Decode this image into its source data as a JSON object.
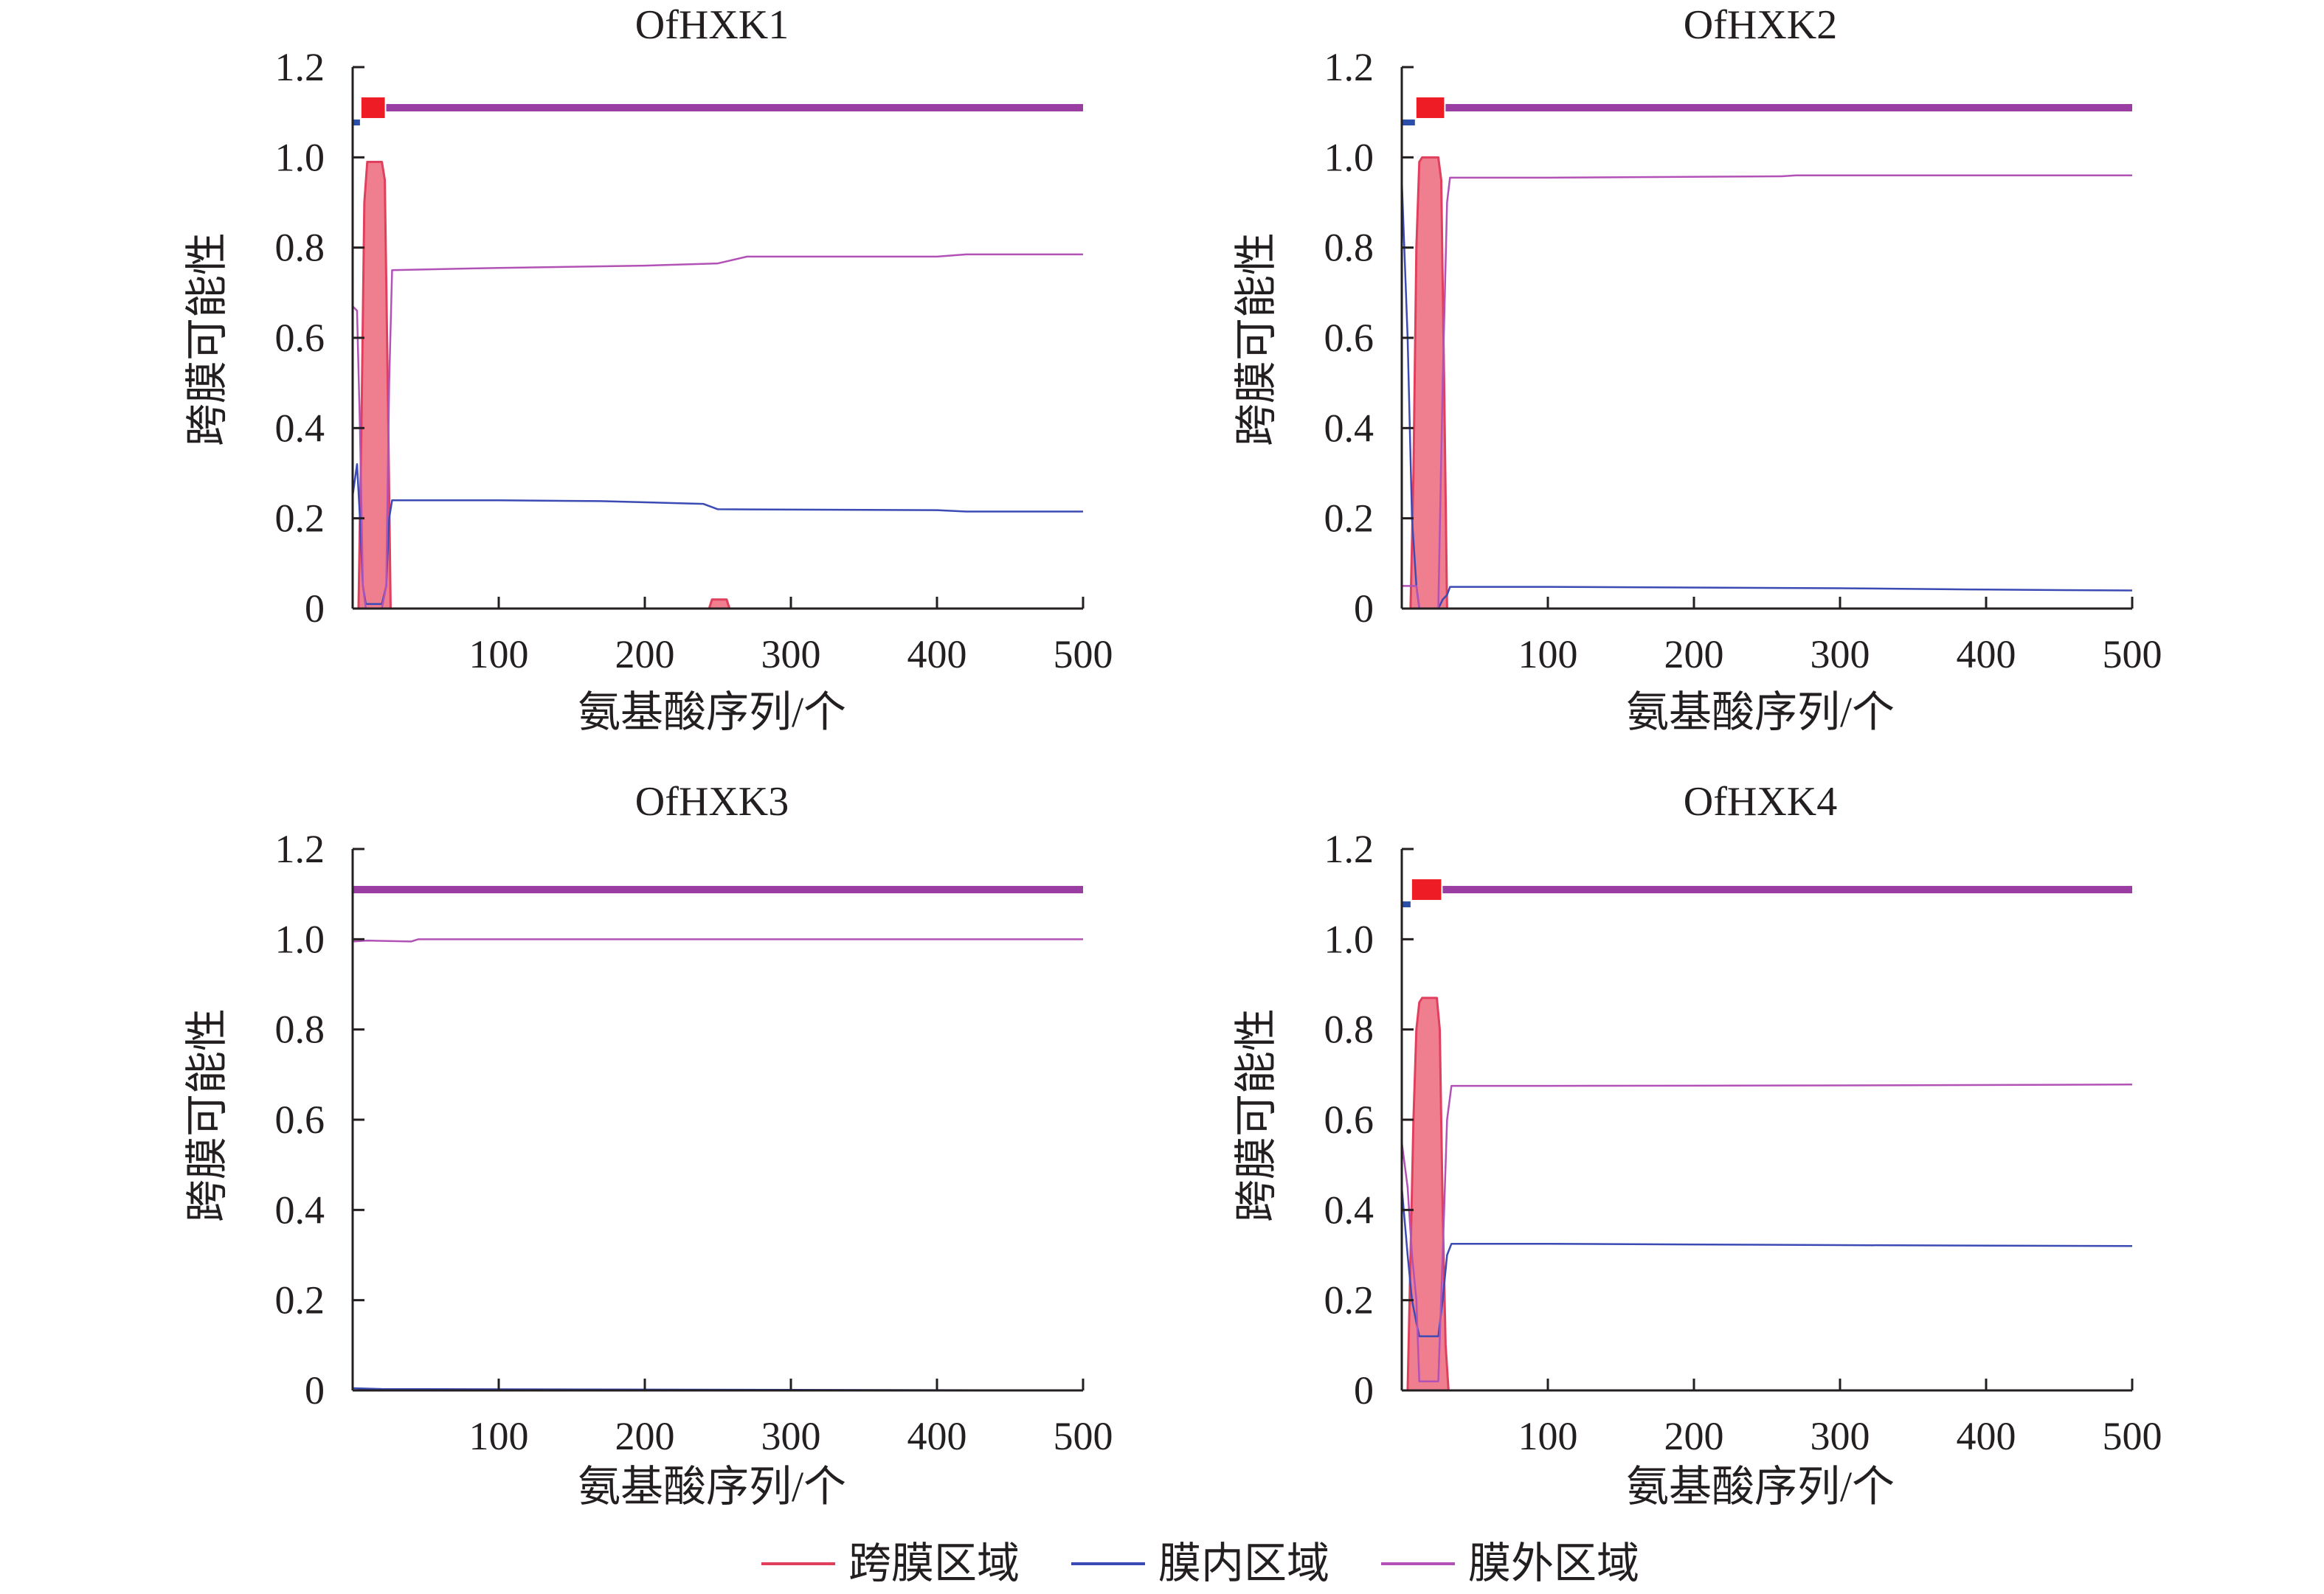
{
  "chart_data": [
    {
      "type": "line",
      "title": "OfHXK1",
      "xlabel": "氨基酸序列/个",
      "ylabel": "跨膜可能性",
      "xlim": [
        0,
        500
      ],
      "ylim": [
        0,
        1.2
      ],
      "xticks": [
        100,
        200,
        300,
        400,
        500
      ],
      "yticks": [
        "0",
        "0.2",
        "0.4",
        "0.6",
        "0.8",
        "1.0",
        "1.2"
      ],
      "topology_bar": [
        {
          "name": "inside",
          "start": 0,
          "end": 5
        },
        {
          "name": "transmembrane",
          "start": 6,
          "end": 22
        },
        {
          "name": "outside",
          "start": 23,
          "end": 500
        }
      ],
      "series": [
        {
          "name": "跨膜区域",
          "x": [
            0,
            4,
            6,
            8,
            10,
            12,
            20,
            22,
            24,
            26,
            240,
            244,
            246,
            256,
            258,
            262,
            500
          ],
          "y": [
            0,
            0,
            0.4,
            0.9,
            0.99,
            0.99,
            0.99,
            0.95,
            0.5,
            0,
            0,
            0,
            0.02,
            0.02,
            0,
            0,
            0
          ]
        },
        {
          "name": "膜内区域",
          "x": [
            0,
            3,
            5,
            7,
            9,
            11,
            20,
            23,
            25,
            27,
            100,
            170,
            240,
            250,
            400,
            420,
            500
          ],
          "y": [
            0.25,
            0.32,
            0.2,
            0.05,
            0.01,
            0.01,
            0.01,
            0.05,
            0.2,
            0.24,
            0.24,
            0.238,
            0.232,
            0.22,
            0.218,
            0.215,
            0.215
          ]
        },
        {
          "name": "膜外区域",
          "x": [
            0,
            3,
            5,
            7,
            9,
            11,
            20,
            23,
            25,
            27,
            100,
            200,
            250,
            270,
            400,
            420,
            500
          ],
          "y": [
            0.67,
            0.66,
            0.4,
            0.05,
            0,
            0,
            0,
            0.05,
            0.5,
            0.75,
            0.755,
            0.76,
            0.765,
            0.78,
            0.78,
            0.785,
            0.785
          ]
        }
      ]
    },
    {
      "type": "line",
      "title": "OfHXK2",
      "xlabel": "氨基酸序列/个",
      "ylabel": "跨膜可能性",
      "xlim": [
        0,
        500
      ],
      "ylim": [
        0,
        1.2
      ],
      "xticks": [
        100,
        200,
        300,
        400,
        500
      ],
      "yticks": [
        "0",
        "0.2",
        "0.4",
        "0.6",
        "0.8",
        "1.0",
        "1.2"
      ],
      "topology_bar": [
        {
          "name": "inside",
          "start": 0,
          "end": 9
        },
        {
          "name": "transmembrane",
          "start": 10,
          "end": 29
        },
        {
          "name": "outside",
          "start": 30,
          "end": 500
        }
      ],
      "series": [
        {
          "name": "跨膜区域",
          "x": [
            0,
            6,
            8,
            10,
            12,
            14,
            25,
            27,
            29,
            31,
            500
          ],
          "y": [
            0,
            0,
            0.3,
            0.8,
            0.99,
            1.0,
            1.0,
            0.95,
            0.5,
            0,
            0
          ]
        },
        {
          "name": "膜内区域",
          "x": [
            0,
            4,
            7,
            10,
            12,
            25,
            28,
            31,
            33,
            100,
            300,
            400,
            500
          ],
          "y": [
            0.95,
            0.6,
            0.2,
            0.05,
            0,
            0,
            0.02,
            0.03,
            0.048,
            0.048,
            0.045,
            0.042,
            0.04
          ]
        },
        {
          "name": "膜外区域",
          "x": [
            0,
            4,
            7,
            10,
            12,
            25,
            28,
            31,
            33,
            100,
            260,
            270,
            500
          ],
          "y": [
            0.05,
            0.05,
            0.05,
            0.05,
            0,
            0,
            0.5,
            0.9,
            0.955,
            0.955,
            0.958,
            0.96,
            0.96
          ]
        }
      ]
    },
    {
      "type": "line",
      "title": "OfHXK3",
      "xlabel": "氨基酸序列/个",
      "ylabel": "跨膜可能性",
      "xlim": [
        0,
        500
      ],
      "ylim": [
        0,
        1.2
      ],
      "xticks": [
        100,
        200,
        300,
        400,
        500
      ],
      "yticks": [
        "0",
        "0.2",
        "0.4",
        "0.6",
        "0.8",
        "1.0",
        "1.2"
      ],
      "topology_bar": [
        {
          "name": "outside",
          "start": 0,
          "end": 500
        }
      ],
      "series": [
        {
          "name": "跨膜区域",
          "x": [
            0,
            500
          ],
          "y": [
            0,
            0
          ]
        },
        {
          "name": "膜内区域",
          "x": [
            0,
            20,
            500
          ],
          "y": [
            0.005,
            0.003,
            0
          ]
        },
        {
          "name": "膜外区域",
          "x": [
            0,
            10,
            40,
            45,
            500
          ],
          "y": [
            0.995,
            0.997,
            0.995,
            1.0,
            1.0
          ]
        }
      ]
    },
    {
      "type": "line",
      "title": "OfHXK4",
      "xlabel": "氨基酸序列/个",
      "ylabel": "跨膜可能性",
      "xlim": [
        0,
        500
      ],
      "ylim": [
        0,
        1.2
      ],
      "xticks": [
        100,
        200,
        300,
        400,
        500
      ],
      "yticks": [
        "0",
        "0.2",
        "0.4",
        "0.6",
        "0.8",
        "1.0",
        "1.2"
      ],
      "topology_bar": [
        {
          "name": "inside",
          "start": 0,
          "end": 6
        },
        {
          "name": "transmembrane",
          "start": 7,
          "end": 27
        },
        {
          "name": "outside",
          "start": 28,
          "end": 500
        }
      ],
      "series": [
        {
          "name": "跨膜区域",
          "x": [
            0,
            4,
            6,
            8,
            10,
            12,
            14,
            24,
            26,
            28,
            30,
            32,
            500
          ],
          "y": [
            0,
            0,
            0.3,
            0.6,
            0.8,
            0.86,
            0.87,
            0.87,
            0.8,
            0.4,
            0.1,
            0,
            0
          ]
        },
        {
          "name": "膜内区域",
          "x": [
            0,
            4,
            7,
            10,
            12,
            25,
            28,
            31,
            34,
            100,
            300,
            500
          ],
          "y": [
            0.45,
            0.3,
            0.2,
            0.15,
            0.12,
            0.12,
            0.2,
            0.3,
            0.325,
            0.325,
            0.322,
            0.32
          ]
        },
        {
          "name": "膜外区域",
          "x": [
            0,
            4,
            7,
            10,
            12,
            25,
            28,
            31,
            34,
            100,
            300,
            500
          ],
          "y": [
            0.55,
            0.45,
            0.3,
            0.2,
            0.02,
            0.02,
            0.3,
            0.6,
            0.675,
            0.675,
            0.676,
            0.678
          ]
        }
      ]
    }
  ],
  "legend": {
    "items": [
      {
        "label": "跨膜区域",
        "color": "#e0405e"
      },
      {
        "label": "膜内区域",
        "color": "#3b4bb3"
      },
      {
        "label": "膜外区域",
        "color": "#b252b6"
      }
    ]
  },
  "colors": {
    "transmembrane": "#e0405e",
    "transmembrane_fill": "#ef7e8f",
    "inside": "#3b4bb3",
    "outside": "#b252b6",
    "topology_outside": "#9a3da3",
    "topology_inside": "#2a4fa8",
    "topology_tm": "#ee1c25",
    "axis": "#231f20"
  }
}
